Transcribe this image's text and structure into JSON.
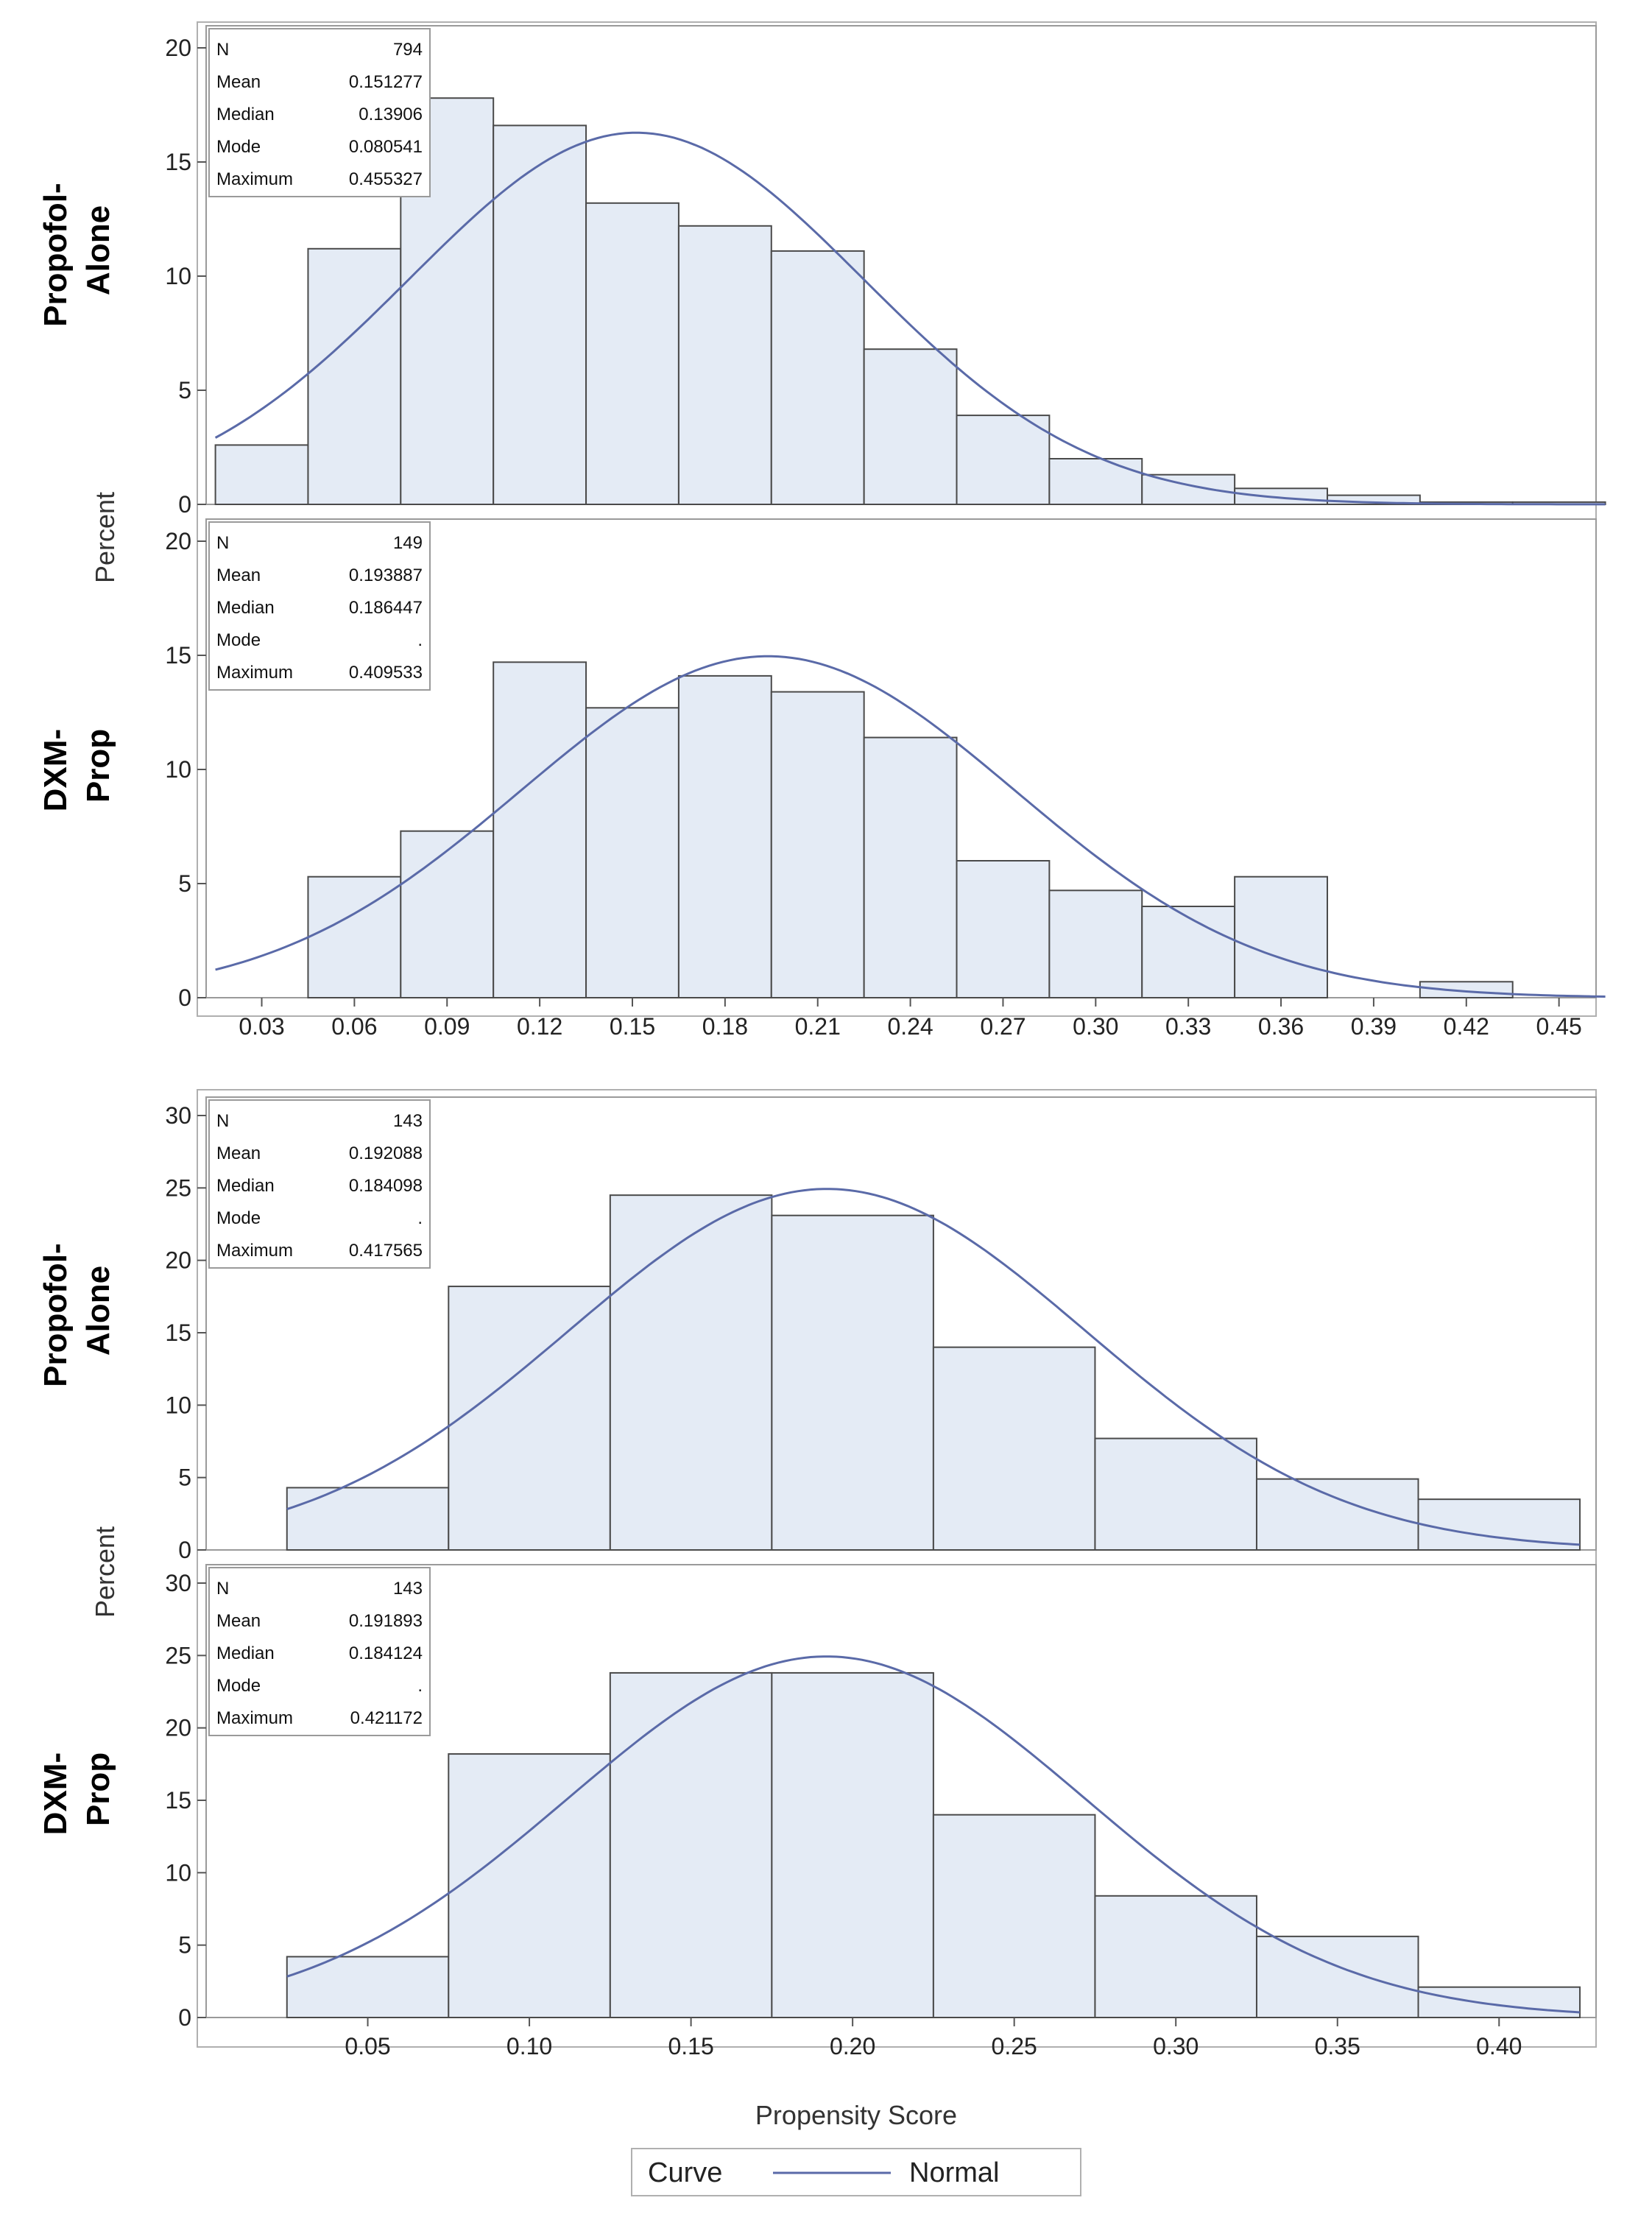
{
  "colors": {
    "bar_fill": "#e4ebf5",
    "bar_stroke": "#4a4a4a",
    "curve": "#5a6aa8",
    "frame": "#9a9a9a",
    "text": "#222222"
  },
  "legend": {
    "title": "Curve",
    "entries": [
      "Normal"
    ]
  },
  "chart_data": [
    {
      "type": "bar",
      "panel_group": "top",
      "row_label": [
        "Propofol-",
        "Alone"
      ],
      "bin_width": 0.03,
      "bin_start": 0.015,
      "values": [
        2.6,
        11.2,
        17.8,
        16.6,
        13.2,
        12.2,
        11.1,
        6.8,
        3.9,
        2.0,
        1.3,
        0.7,
        0.4,
        0.1,
        0.1
      ],
      "normal": {
        "mean": 0.151277,
        "sd": 0.0735
      },
      "ylim": [
        0,
        20
      ],
      "yticks": [
        "0",
        "5",
        "10",
        "15",
        "20"
      ],
      "stats_labels": [
        "N",
        "Mean",
        "Median",
        "Mode",
        "Maximum"
      ],
      "stats_values": [
        "794",
        "0.151277",
        "0.13906",
        "0.080541",
        "0.455327"
      ]
    },
    {
      "type": "bar",
      "panel_group": "top",
      "row_label": [
        "DXM-",
        "Prop"
      ],
      "bin_width": 0.03,
      "bin_start": 0.015,
      "values": [
        0,
        5.3,
        7.3,
        14.7,
        12.7,
        14.1,
        13.4,
        11.4,
        6.0,
        4.7,
        4.0,
        5.3,
        0,
        0.7,
        0
      ],
      "normal": {
        "mean": 0.193887,
        "sd": 0.08
      },
      "ylim": [
        0,
        20
      ],
      "yticks": [
        "0",
        "5",
        "10",
        "15",
        "20"
      ],
      "stats_labels": [
        "N",
        "Mean",
        "Median",
        "Mode",
        "Maximum"
      ],
      "stats_values": [
        "149",
        "0.193887",
        "0.186447",
        ".",
        "0.409533"
      ],
      "xticks": [
        "0.03",
        "0.06",
        "0.09",
        "0.12",
        "0.15",
        "0.18",
        "0.21",
        "0.24",
        "0.27",
        "0.30",
        "0.33",
        "0.36",
        "0.39",
        "0.42",
        "0.45"
      ],
      "xlim": [
        0.012,
        0.462
      ]
    },
    {
      "type": "bar",
      "panel_group": "bottom",
      "row_label": [
        "Propofol-",
        "Alone"
      ],
      "bin_width": 0.05,
      "bin_start": 0.025,
      "values": [
        4.3,
        18.2,
        24.5,
        23.1,
        14.0,
        7.7,
        4.9,
        3.5
      ],
      "normal": {
        "mean": 0.192088,
        "sd": 0.08
      },
      "ylim": [
        0,
        30
      ],
      "yticks": [
        "0",
        "5",
        "10",
        "15",
        "20",
        "25",
        "30"
      ],
      "stats_labels": [
        "N",
        "Mean",
        "Median",
        "Mode",
        "Maximum"
      ],
      "stats_values": [
        "143",
        "0.192088",
        "0.184098",
        ".",
        "0.417565"
      ]
    },
    {
      "type": "bar",
      "panel_group": "bottom",
      "row_label": [
        "DXM-",
        "Prop"
      ],
      "bin_width": 0.05,
      "bin_start": 0.025,
      "values": [
        4.2,
        18.2,
        23.8,
        23.8,
        14.0,
        8.4,
        5.6,
        2.1
      ],
      "normal": {
        "mean": 0.191893,
        "sd": 0.08
      },
      "ylim": [
        0,
        30
      ],
      "yticks": [
        "0",
        "5",
        "10",
        "15",
        "20",
        "25",
        "30"
      ],
      "stats_labels": [
        "N",
        "Mean",
        "Median",
        "Mode",
        "Maximum"
      ],
      "stats_values": [
        "143",
        "0.191893",
        "0.184124",
        ".",
        "0.421172"
      ],
      "xticks": [
        "0.05",
        "0.10",
        "0.15",
        "0.20",
        "0.25",
        "0.30",
        "0.35",
        "0.40"
      ],
      "xlim": [
        0.0,
        0.43
      ]
    }
  ],
  "axis_titles": {
    "y": "Percent",
    "x": "Propensity Score"
  }
}
